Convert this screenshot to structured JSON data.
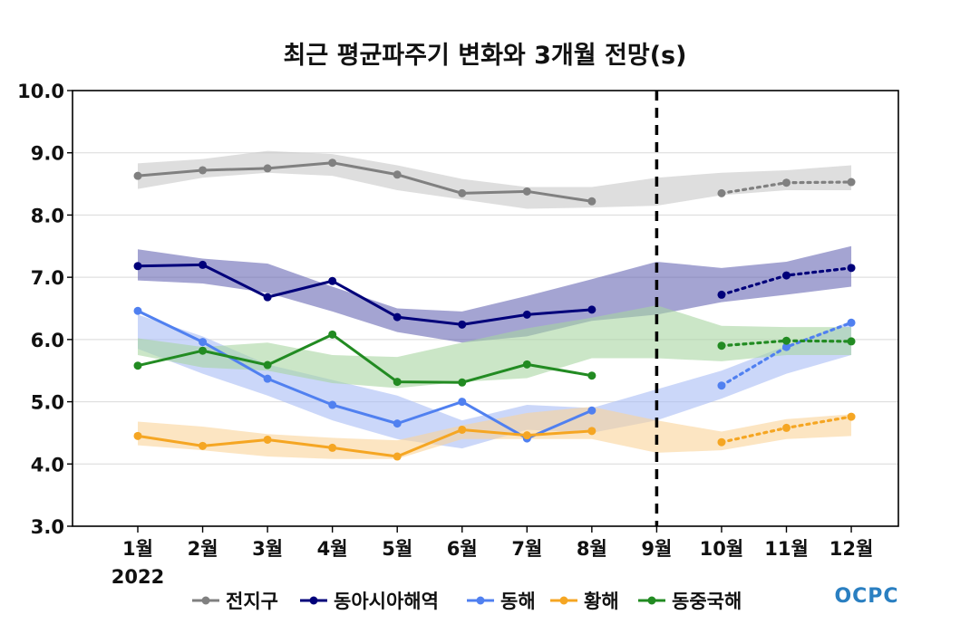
{
  "chart_data": {
    "type": "line",
    "title": "최근 평균파주기 변화와 3개월 전망(s)",
    "categories": [
      "1월",
      "2월",
      "3월",
      "4월",
      "5월",
      "6월",
      "7월",
      "8월",
      "9월",
      "10월",
      "11월",
      "12월"
    ],
    "year_label": "2022",
    "ylim": [
      3.0,
      10.0
    ],
    "yticks": [
      "3.0",
      "4.0",
      "5.0",
      "6.0",
      "7.0",
      "8.0",
      "9.0",
      "10.0"
    ],
    "divider_after_category": "9월",
    "grid": true,
    "legend_position": "bottom",
    "logo": "OCPC",
    "series": [
      {
        "name": "전지구",
        "color": "#808080",
        "band_color": "#c8c8c8",
        "values": [
          8.63,
          8.72,
          8.75,
          8.84,
          8.65,
          8.35,
          8.38,
          8.22,
          null,
          8.35,
          8.52,
          8.53
        ],
        "band_low": [
          8.42,
          8.6,
          8.68,
          8.63,
          8.4,
          8.25,
          8.1,
          8.12,
          8.15,
          8.32,
          8.4,
          8.4
        ],
        "band_high": [
          8.83,
          8.9,
          9.03,
          8.98,
          8.8,
          8.58,
          8.45,
          8.45,
          8.6,
          8.68,
          8.72,
          8.8
        ]
      },
      {
        "name": "동아시아해역",
        "color": "#00007a",
        "band_color": "#6868b4",
        "values": [
          7.18,
          7.2,
          6.68,
          6.94,
          6.36,
          6.24,
          6.4,
          6.48,
          null,
          6.72,
          7.03,
          7.15
        ],
        "band_low": [
          6.95,
          6.9,
          6.75,
          6.45,
          6.12,
          5.95,
          6.05,
          6.3,
          6.4,
          6.6,
          6.72,
          6.85
        ],
        "band_high": [
          7.45,
          7.3,
          7.22,
          6.85,
          6.5,
          6.45,
          6.7,
          6.97,
          7.25,
          7.15,
          7.25,
          7.5
        ]
      },
      {
        "name": "동해",
        "color": "#5080f0",
        "band_color": "#a8bdf5",
        "values": [
          6.46,
          5.96,
          5.37,
          4.95,
          4.65,
          5.0,
          4.41,
          4.86,
          null,
          5.26,
          5.88,
          6.27
        ],
        "band_low": [
          5.85,
          5.45,
          5.1,
          4.7,
          4.4,
          4.25,
          4.55,
          4.5,
          4.7,
          5.05,
          5.45,
          5.75
        ],
        "band_high": [
          6.4,
          6.05,
          5.6,
          5.35,
          5.1,
          4.7,
          4.95,
          4.9,
          5.2,
          5.5,
          5.9,
          6.3
        ]
      },
      {
        "name": "황해",
        "color": "#f5a623",
        "band_color": "#fad499",
        "values": [
          4.45,
          4.29,
          4.39,
          4.26,
          4.12,
          4.55,
          4.46,
          4.53,
          null,
          4.35,
          4.58,
          4.76
        ],
        "band_low": [
          4.3,
          4.22,
          4.12,
          4.08,
          4.08,
          4.4,
          4.4,
          4.4,
          4.18,
          4.22,
          4.4,
          4.45
        ],
        "band_high": [
          4.68,
          4.6,
          4.48,
          4.42,
          4.38,
          4.62,
          4.82,
          4.92,
          4.7,
          4.52,
          4.72,
          4.8
        ]
      },
      {
        "name": "동중국해",
        "color": "#228b22",
        "band_color": "#a9d6a1",
        "values": [
          5.58,
          5.82,
          5.59,
          6.08,
          5.32,
          5.31,
          5.6,
          5.42,
          null,
          5.9,
          5.98,
          5.97
        ],
        "band_low": [
          5.75,
          5.55,
          5.5,
          5.3,
          5.22,
          5.32,
          5.38,
          5.7,
          5.7,
          5.65,
          5.75,
          5.75
        ],
        "band_high": [
          6.02,
          5.88,
          5.95,
          5.75,
          5.72,
          5.95,
          6.18,
          6.35,
          6.55,
          6.22,
          6.2,
          6.2
        ]
      }
    ]
  }
}
